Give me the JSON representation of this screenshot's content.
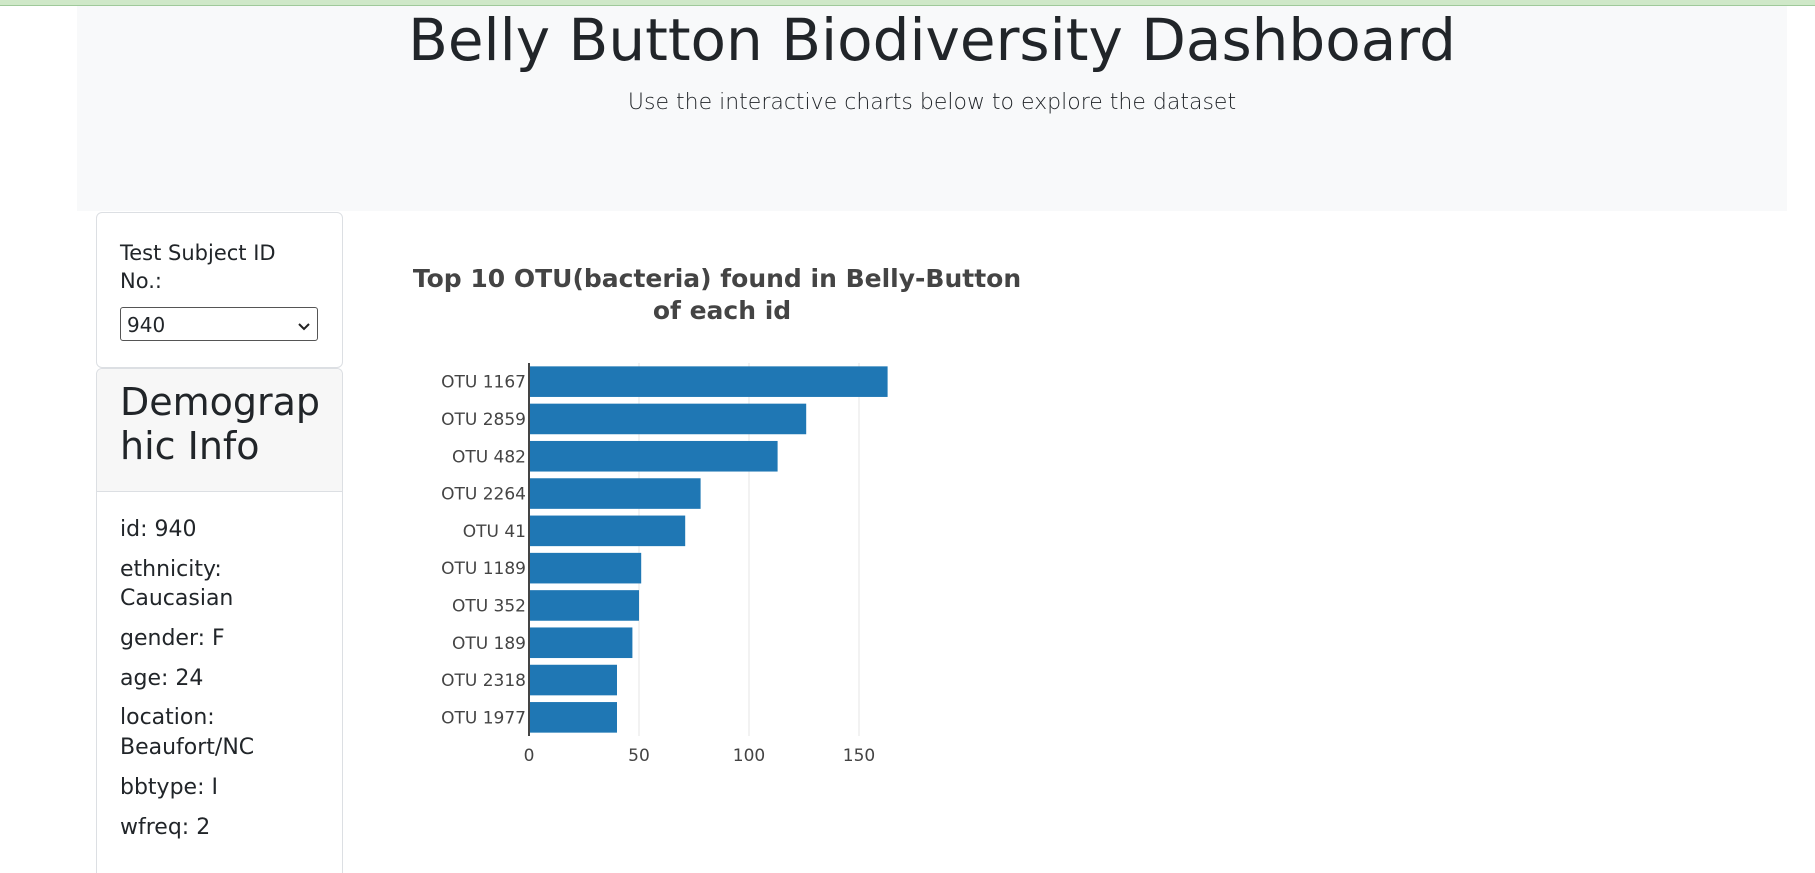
{
  "header": {
    "title": "Belly Button Biodiversity Dashboard",
    "subtitle": "Use the interactive charts below to explore the dataset"
  },
  "selector": {
    "label": "Test Subject ID No.:",
    "selected": "940",
    "icon": "chevron-down-icon"
  },
  "demographics": {
    "title": "Demographic Info",
    "items": [
      "id: 940",
      "ethnicity: Caucasian",
      "gender: F",
      "age: 24",
      "location: Beaufort/NC",
      "bbtype: I",
      "wfreq: 2"
    ]
  },
  "colors": {
    "bar": "#1f77b4",
    "jumbotron": "#f8f9fa"
  },
  "chart_data": {
    "type": "bar",
    "orientation": "horizontal",
    "title": "Top 10 OTU(bacteria) found in Belly-Button of each id",
    "title_lines": [
      "Top 10 OTU(bacteria) found in Belly-Button",
      "of each id"
    ],
    "categories": [
      "OTU 1167",
      "OTU 2859",
      "OTU 482",
      "OTU 2264",
      "OTU 41",
      "OTU 1189",
      "OTU 352",
      "OTU 189",
      "OTU 2318",
      "OTU 1977"
    ],
    "values": [
      163,
      126,
      113,
      78,
      71,
      51,
      50,
      47,
      40,
      40
    ],
    "xticks": [
      "0",
      "50",
      "100",
      "150"
    ],
    "xlim": [
      0,
      165
    ],
    "grid": true
  }
}
